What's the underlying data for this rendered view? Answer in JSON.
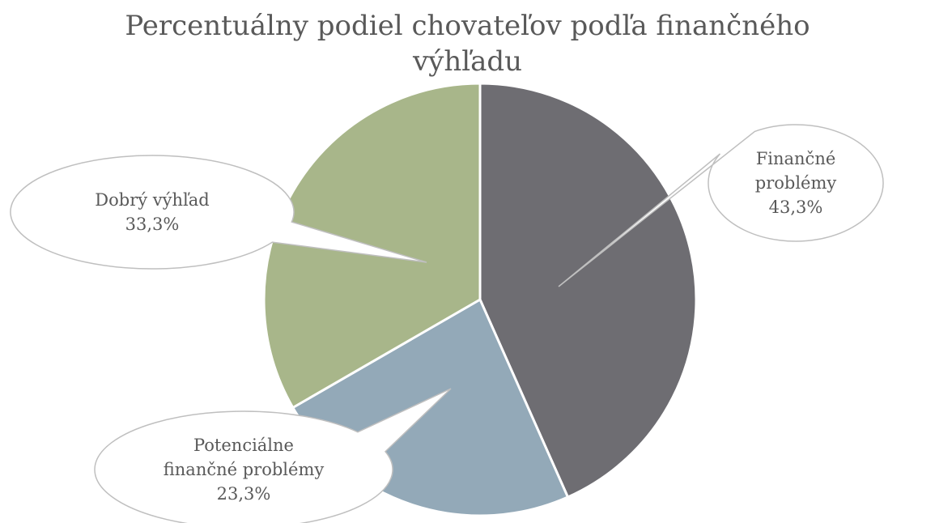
{
  "chart_data": {
    "type": "pie",
    "title_lines": [
      "Percentuálny podiel chovateľov podľa finančného",
      "výhľadu"
    ],
    "slices": [
      {
        "name": "Finančné problémy",
        "value": 43.3,
        "label_lines": [
          "Finančné",
          "problémy",
          "43,3%"
        ],
        "color": "#6e6d72"
      },
      {
        "name": "Potenciálne finančné problémy",
        "value": 23.3,
        "label_lines": [
          "Potenciálne",
          "finančné problémy",
          "23,3%"
        ],
        "color": "#93a9b8"
      },
      {
        "name": "Dobrý výhľad",
        "value": 33.3,
        "label_lines": [
          "Dobrý výhľad",
          "33,3%"
        ],
        "color": "#a8b68a"
      }
    ],
    "start_angle_deg": 0,
    "direction": "clockwise",
    "legend": "none"
  }
}
